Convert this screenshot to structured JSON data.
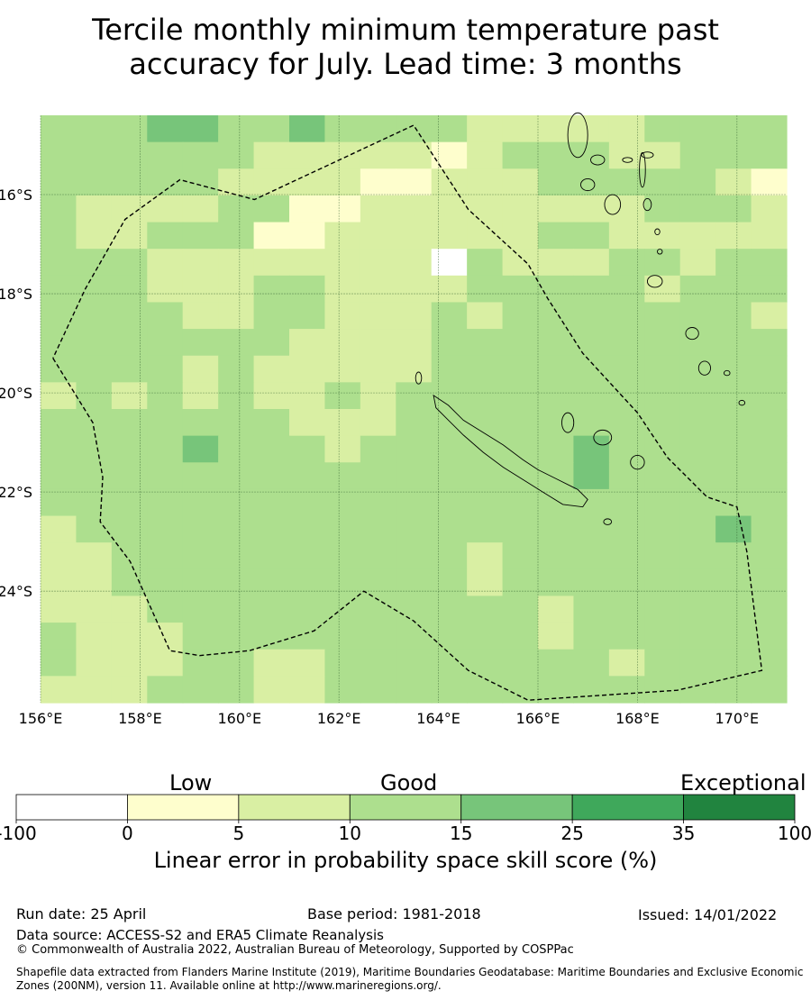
{
  "title_line1": "Tercile monthly minimum temperature past",
  "title_line2": "accuracy for July. Lead time: 3 months",
  "map": {
    "lon_labels": [
      "156°E",
      "158°E",
      "160°E",
      "162°E",
      "164°E",
      "166°E",
      "168°E",
      "170°E"
    ],
    "lat_labels": [
      "16°S",
      "18°S",
      "20°S",
      "22°S",
      "24°S"
    ],
    "lon_range": [
      156,
      171
    ],
    "lat_range": [
      -26.25,
      -14.4
    ],
    "grid_rows": [
      "333443343333222223333",
      "333333222221233322333",
      "333332222112223333321",
      "322223311222222223332",
      "322333112222223322222",
      "333222222220322233233",
      "333222332222333332333",
      "333322332223233333332",
      "333333322223333333333",
      "333323222223333333333",
      "232323223233333333333",
      "333333322233333333333",
      "333343332333333433333",
      "333333333333333433333",
      "333333333333333333333",
      "233333333333333333343",
      "223333333333233333333",
      "223333333333233333333",
      "222333333333332333333",
      "322233333333332333333",
      "322233223333333323333",
      "222333223333333333333"
    ],
    "boundary": [
      [
        156.25,
        -19.3
      ],
      [
        157.05,
        -20.6
      ],
      [
        157.25,
        -21.7
      ],
      [
        157.2,
        -22.6
      ],
      [
        157.8,
        -23.4
      ],
      [
        158.6,
        -25.2
      ],
      [
        159.2,
        -25.3
      ],
      [
        160.2,
        -25.2
      ],
      [
        161.5,
        -24.8
      ],
      [
        162.5,
        -24.0
      ],
      [
        163.5,
        -24.6
      ],
      [
        164.6,
        -25.6
      ],
      [
        165.8,
        -26.2
      ],
      [
        168.8,
        -26.0
      ],
      [
        170.5,
        -25.6
      ],
      [
        170.2,
        -23.2
      ],
      [
        170.0,
        -22.3
      ],
      [
        169.4,
        -22.1
      ],
      [
        168.6,
        -21.3
      ],
      [
        168.0,
        -20.4
      ],
      [
        166.9,
        -19.2
      ],
      [
        166.2,
        -18.1
      ],
      [
        165.8,
        -17.4
      ],
      [
        164.6,
        -16.3
      ],
      [
        163.5,
        -14.6
      ],
      [
        160.3,
        -16.1
      ],
      [
        158.8,
        -15.7
      ],
      [
        157.7,
        -16.5
      ],
      [
        156.9,
        -17.9
      ],
      [
        156.25,
        -19.3
      ]
    ],
    "new_caledonia": [
      [
        163.9,
        -20.05
      ],
      [
        164.2,
        -20.25
      ],
      [
        164.5,
        -20.55
      ],
      [
        164.9,
        -20.8
      ],
      [
        165.3,
        -21.05
      ],
      [
        165.7,
        -21.35
      ],
      [
        166.0,
        -21.55
      ],
      [
        166.4,
        -21.75
      ],
      [
        166.8,
        -21.95
      ],
      [
        167.0,
        -22.15
      ],
      [
        166.9,
        -22.3
      ],
      [
        166.5,
        -22.25
      ],
      [
        166.1,
        -22.0
      ],
      [
        165.7,
        -21.75
      ],
      [
        165.3,
        -21.5
      ],
      [
        164.9,
        -21.2
      ],
      [
        164.5,
        -20.85
      ],
      [
        164.2,
        -20.55
      ],
      [
        163.95,
        -20.3
      ],
      [
        163.9,
        -20.05
      ]
    ],
    "islands": [
      [
        163.6,
        -19.7,
        0.06,
        0.12
      ],
      [
        166.6,
        -20.6,
        0.12,
        0.2
      ],
      [
        167.3,
        -20.9,
        0.18,
        0.15
      ],
      [
        168.0,
        -21.4,
        0.14,
        0.14
      ],
      [
        167.4,
        -22.6,
        0.08,
        0.06
      ],
      [
        169.1,
        -18.8,
        0.13,
        0.12
      ],
      [
        169.35,
        -19.5,
        0.12,
        0.14
      ],
      [
        169.8,
        -19.6,
        0.06,
        0.05
      ],
      [
        170.1,
        -20.2,
        0.06,
        0.05
      ],
      [
        166.8,
        -14.8,
        0.2,
        0.45
      ],
      [
        167.2,
        -15.3,
        0.14,
        0.1
      ],
      [
        167.0,
        -15.8,
        0.14,
        0.12
      ],
      [
        167.5,
        -16.2,
        0.16,
        0.2
      ],
      [
        168.1,
        -15.5,
        0.06,
        0.35
      ],
      [
        168.2,
        -16.2,
        0.08,
        0.12
      ],
      [
        168.4,
        -16.75,
        0.05,
        0.06
      ],
      [
        168.45,
        -17.15,
        0.05,
        0.05
      ],
      [
        168.35,
        -17.75,
        0.15,
        0.12
      ],
      [
        168.2,
        -15.2,
        0.12,
        0.06
      ],
      [
        167.8,
        -15.3,
        0.1,
        0.05
      ]
    ]
  },
  "colorbar": {
    "categories": [
      "Low",
      "Good",
      "Exceptional"
    ],
    "tick_labels": [
      "-100",
      "0",
      "5",
      "10",
      "15",
      "25",
      "35",
      "100"
    ],
    "colors": [
      "#ffffff",
      "#fefecd",
      "#d9efa3",
      "#addf8e",
      "#77c57a",
      "#3fa85b",
      "#21843f"
    ],
    "title": "Linear error in probability space skill score (%)"
  },
  "footer": {
    "run_date": "Run date: 25 April",
    "base_period": "Base period: 1981-2018",
    "issued": "Issued: 14/01/2022",
    "data_source": "Data source: ACCESS-S2 and ERA5 Climate Reanalysis",
    "copyright": "© Commonwealth of Australia 2022, Australian Bureau of Meteorology, Supported by COSPPac",
    "shapefile": "Shapefile data extracted from Flanders Marine Institute (2019), Maritime Boundaries Geodatabase: Maritime Boundaries and Exclusive Economic Zones (200NM), version 11. Available online at http://www.marineregions.org/."
  }
}
